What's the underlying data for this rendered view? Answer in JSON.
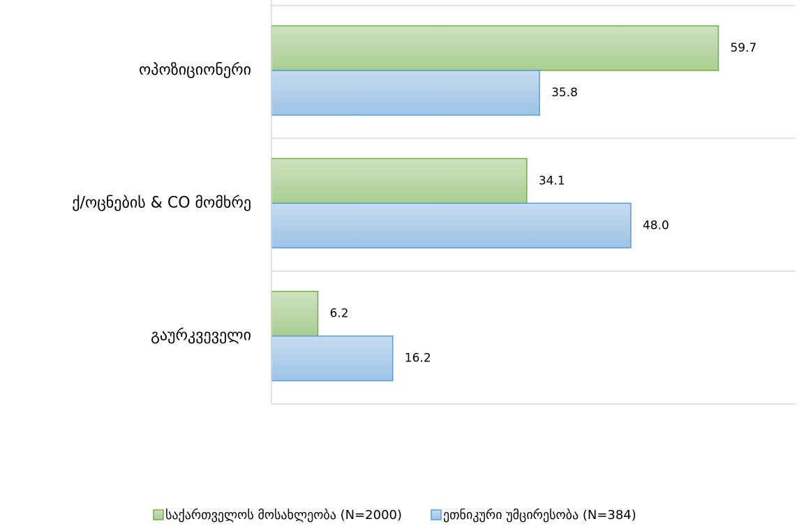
{
  "chart_data": {
    "type": "bar",
    "orientation": "horizontal",
    "categories": [
      "ოპოზიციონერი",
      "ქ/ოცნების & CO მომხრე",
      "გაურკვეველი"
    ],
    "series": [
      {
        "name": "საქართველოს მოსახლეობა  (N=2000)",
        "color": "#70ad47",
        "values": [
          59.7,
          34.1,
          6.2
        ],
        "value_labels": [
          "59.7",
          "34.1",
          "6.2"
        ]
      },
      {
        "name": "ეთნიკური უმცირესობა (N=384)",
        "color": "#5b9bd5",
        "values": [
          35.8,
          48.0,
          16.2
        ],
        "value_labels": [
          "35.8",
          "48.0",
          "16.2"
        ]
      }
    ],
    "xlim": [
      0,
      70
    ],
    "legend": "bottom"
  }
}
